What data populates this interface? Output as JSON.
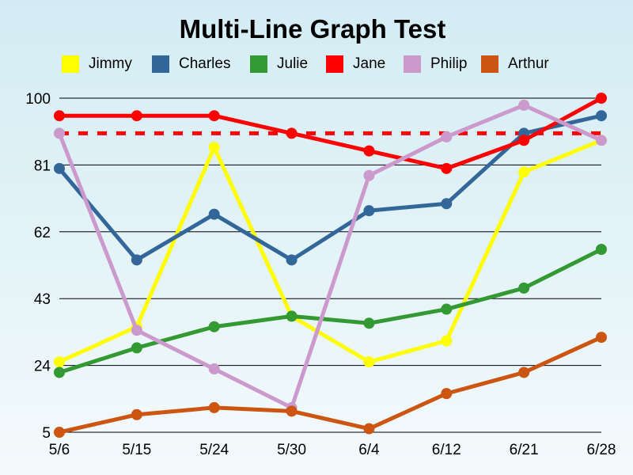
{
  "chart_data": {
    "type": "line",
    "title": "Multi-Line Graph Test",
    "xlabel": "",
    "ylabel": "",
    "categories": [
      "5/6",
      "5/15",
      "5/24",
      "5/30",
      "6/4",
      "6/12",
      "6/21",
      "6/28"
    ],
    "ylim": [
      5,
      100
    ],
    "yticks": [
      5,
      24,
      43,
      62,
      81,
      100
    ],
    "grid": true,
    "legend": "top",
    "reference_line": {
      "value": 90,
      "color": "#ff0000",
      "style": "dashed"
    },
    "series": [
      {
        "name": "Jimmy",
        "color": "#ffff00",
        "values": [
          25,
          35,
          86,
          38,
          25,
          31,
          79,
          88
        ]
      },
      {
        "name": "Charles",
        "color": "#336699",
        "values": [
          80,
          54,
          67,
          54,
          68,
          70,
          90,
          95
        ]
      },
      {
        "name": "Julie",
        "color": "#339933",
        "values": [
          22,
          29,
          35,
          38,
          36,
          40,
          46,
          57
        ]
      },
      {
        "name": "Jane",
        "color": "#ff0000",
        "values": [
          95,
          95,
          95,
          90,
          85,
          80,
          88,
          100
        ]
      },
      {
        "name": "Philip",
        "color": "#cc99cc",
        "values": [
          90,
          34,
          23,
          12,
          78,
          89,
          98,
          88
        ]
      },
      {
        "name": "Arthur",
        "color": "#cc5511",
        "values": [
          5,
          10,
          12,
          11,
          6,
          16,
          22,
          32
        ]
      }
    ]
  }
}
